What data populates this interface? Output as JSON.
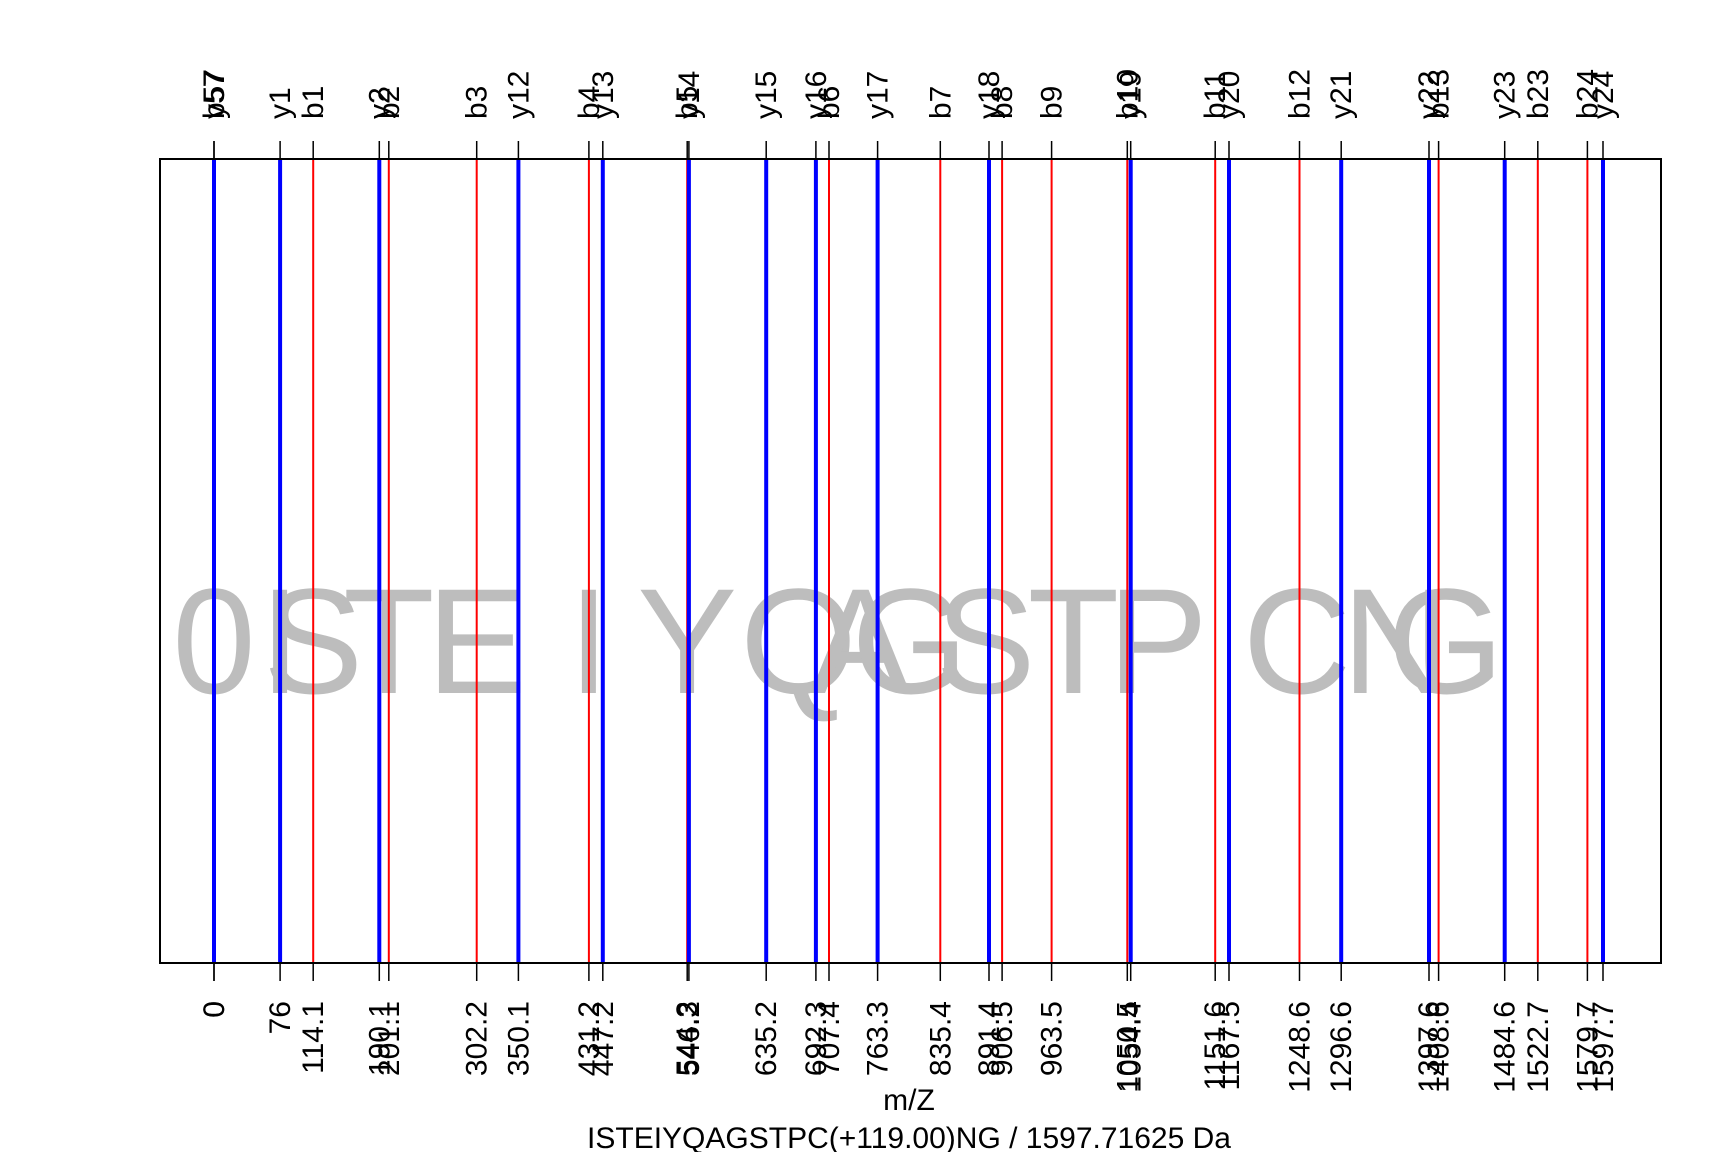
{
  "chart_data": {
    "type": "spectrum-annotation",
    "title": "ISTEIYQAGSTPC(+119.00)NG / 1597.71625 Da",
    "xlabel": "m/Z",
    "xlim": [
      0,
      1597.7
    ],
    "colors": {
      "b": "#ff0000",
      "y": "#0000ff",
      "frame": "#000000",
      "sequence": "#bdbdbd"
    },
    "sequence": [
      "0",
      "I",
      "S",
      "T",
      "E",
      "I",
      "Y",
      "Q",
      "A",
      "G",
      "S",
      "T",
      "P",
      "C",
      "N",
      "G"
    ],
    "sequence_positions": [
      0,
      76,
      114.1,
      201.1,
      302.2,
      431.2,
      544.3,
      672.3,
      743.4,
      800.4,
      887.4,
      988.5,
      1085.6,
      1245.6,
      1359.6,
      1416.7
    ],
    "b_ions": [
      {
        "label": "b1",
        "mz": 114.1,
        "tick_label": "114.1"
      },
      {
        "label": "b2",
        "mz": 201.1,
        "tick_label": "201.1"
      },
      {
        "label": "b3",
        "mz": 302.2,
        "tick_label": "302.2"
      },
      {
        "label": "b4",
        "mz": 431.2,
        "tick_label": "431.2"
      },
      {
        "label": "b5",
        "mz": 544.3,
        "tick_label": "544.3"
      },
      {
        "label": "b6",
        "mz": 707.4,
        "tick_label": "707.4"
      },
      {
        "label": "b7",
        "mz": 835.4,
        "tick_label": "835.4"
      },
      {
        "label": "b8",
        "mz": 906.5,
        "tick_label": "906.5"
      },
      {
        "label": "b9",
        "mz": 963.5,
        "tick_label": "963.5"
      },
      {
        "label": "b10",
        "mz": 1050.5,
        "tick_label": "1050.5"
      },
      {
        "label": "b11",
        "mz": 1151.6,
        "tick_label": "1151.6"
      },
      {
        "label": "b12",
        "mz": 1248.6,
        "tick_label": "1248.6"
      },
      {
        "label": "b13",
        "mz": 1408.6,
        "tick_label": "1408.6"
      },
      {
        "label": "b23",
        "mz": 1522.7,
        "tick_label": "1522.7"
      },
      {
        "label": "b24",
        "mz": 1579.7,
        "tick_label": "1579.7"
      },
      {
        "label": "b57",
        "mz": 0,
        "tick_label": "0"
      }
    ],
    "y_ions": [
      {
        "label": "y1",
        "mz": 76,
        "tick_label": "76"
      },
      {
        "label": "y2",
        "mz": 190.1,
        "tick_label": "190.1"
      },
      {
        "label": "y12",
        "mz": 350.1,
        "tick_label": "350.1"
      },
      {
        "label": "y13",
        "mz": 447.2,
        "tick_label": "447.2"
      },
      {
        "label": "y14",
        "mz": 546.2,
        "tick_label": "546.2"
      },
      {
        "label": "y15",
        "mz": 635.2,
        "tick_label": "635.2"
      },
      {
        "label": "y16",
        "mz": 692.3,
        "tick_label": "692.3"
      },
      {
        "label": "y17",
        "mz": 763.3,
        "tick_label": "763.3"
      },
      {
        "label": "y18",
        "mz": 891.4,
        "tick_label": "891.4"
      },
      {
        "label": "y19",
        "mz": 1054.4,
        "tick_label": "1054.4"
      },
      {
        "label": "y20",
        "mz": 1167.5,
        "tick_label": "1167.5"
      },
      {
        "label": "y21",
        "mz": 1296.6,
        "tick_label": "1296.6"
      },
      {
        "label": "y22",
        "mz": 1397.6,
        "tick_label": "1397.6"
      },
      {
        "label": "y23",
        "mz": 1484.6,
        "tick_label": "1484.6"
      },
      {
        "label": "y24",
        "mz": 1597.7,
        "tick_label": "1597.7"
      },
      {
        "label": "y57",
        "mz": 0,
        "tick_label": "0"
      }
    ]
  }
}
